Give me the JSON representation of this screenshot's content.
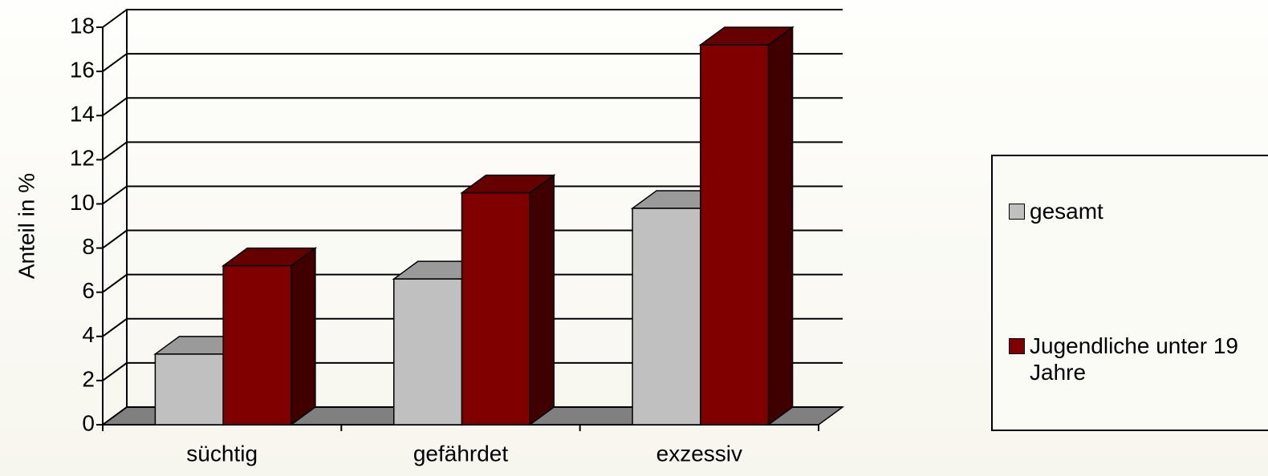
{
  "chart_data": {
    "type": "bar3d",
    "ylabel": "Anteil in %",
    "categories": [
      "süchtig",
      "gefährdet",
      "exzessiv"
    ],
    "series": [
      {
        "name": "gesamt",
        "color": "#c0c0c0",
        "values": [
          3.2,
          6.6,
          9.8
        ]
      },
      {
        "name": "Jugendliche unter 19 Jahre",
        "color": "#800000",
        "values": [
          7.2,
          10.5,
          17.2
        ]
      }
    ],
    "ylim": [
      0,
      18
    ],
    "yticks": [
      0,
      2,
      4,
      6,
      8,
      10,
      12,
      14,
      16,
      18
    ],
    "grid": true,
    "legend": "right"
  }
}
